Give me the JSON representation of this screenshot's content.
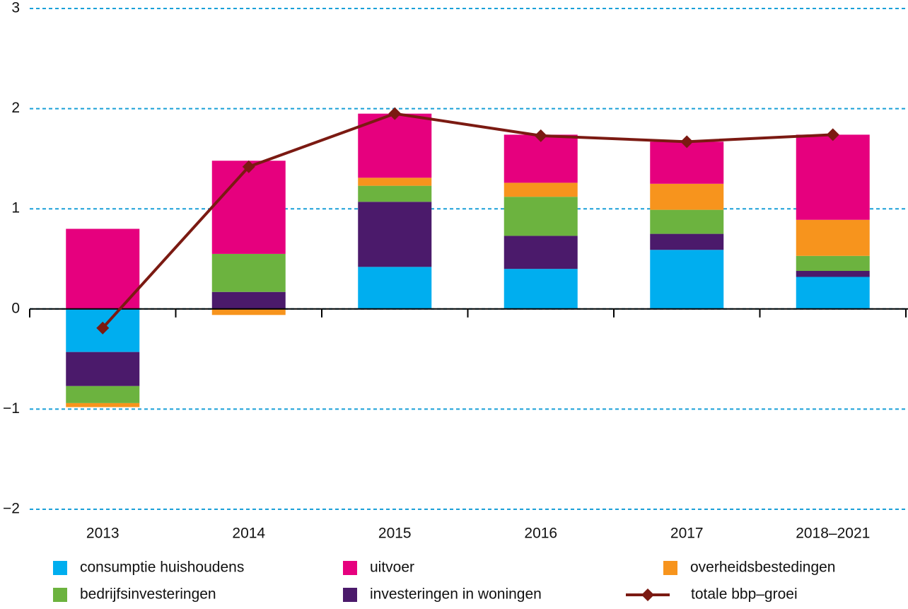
{
  "chart_data": {
    "type": "bar",
    "categories": [
      "2013",
      "2014",
      "2015",
      "2016",
      "2017",
      "2018–2021"
    ],
    "ylim": [
      -2,
      3
    ],
    "yticks": [
      {
        "value": -2,
        "label": "−2"
      },
      {
        "value": -1,
        "label": "−1"
      },
      0,
      1,
      2,
      3
    ],
    "grid": true,
    "series": [
      {
        "name": "consumptie huishoudens",
        "color": "#00aeef",
        "values": [
          -0.43,
          0,
          0.42,
          0.4,
          0.59,
          0.32
        ]
      },
      {
        "name": "investeringen in woningen",
        "color": "#4b1a6b",
        "values": [
          -0.34,
          0.17,
          0.65,
          0.33,
          0.16,
          0.06
        ]
      },
      {
        "name": "bedrijfsinvesteringen",
        "color": "#6cb33f",
        "values": [
          -0.17,
          0.38,
          0.16,
          0.39,
          0.24,
          0.15
        ]
      },
      {
        "name": "overheidsbestedingen",
        "color": "#f7941d",
        "values": [
          -0.04,
          -0.06,
          0.08,
          0.14,
          0.26,
          0.36
        ]
      },
      {
        "name": "uitvoer",
        "color": "#e6007e",
        "values": [
          0.8,
          0.93,
          0.64,
          0.48,
          0.42,
          0.85
        ]
      },
      {
        "name": "totale bbp–groei",
        "type": "line",
        "color": "#7b1a12",
        "values": [
          -0.19,
          1.42,
          1.95,
          1.73,
          1.67,
          1.74
        ]
      }
    ]
  }
}
